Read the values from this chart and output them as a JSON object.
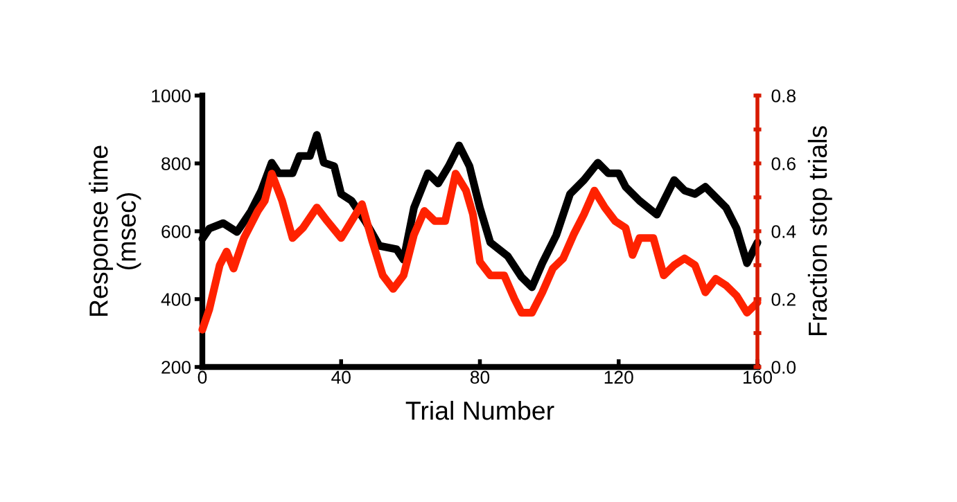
{
  "chart_data": {
    "type": "line",
    "xlabel": "Trial Number",
    "ylabel": "Response time\n(msec)",
    "y2label": "Fraction stop trials",
    "xlim": [
      0,
      160
    ],
    "xticks": [
      0,
      40,
      80,
      120,
      160
    ],
    "ylim": [
      200,
      1000
    ],
    "yticks": [
      200,
      400,
      600,
      800,
      1000
    ],
    "y2lim": [
      0,
      0.8
    ],
    "y2ticks": [
      {
        "value": 0,
        "label": "0.0"
      },
      {
        "value": 0.1,
        "label": null
      },
      {
        "value": 0.2,
        "label": "0.2"
      },
      {
        "value": 0.3,
        "label": null
      },
      {
        "value": 0.4,
        "label": "0.4"
      },
      {
        "value": 0.5,
        "label": null
      },
      {
        "value": 0.6,
        "label": "0.6"
      },
      {
        "value": 0.7,
        "label": null
      },
      {
        "value": 0.8,
        "label": "0.8"
      }
    ],
    "grid": false,
    "legend": false,
    "marker": "none",
    "line_style": "solid",
    "series": [
      {
        "color": "#000000",
        "x": [
          0,
          2,
          6,
          10,
          14,
          17,
          20,
          22,
          26,
          28,
          31,
          33,
          35,
          38,
          40,
          43,
          47,
          51,
          56,
          58,
          61,
          65,
          68,
          71,
          74,
          77,
          80,
          83,
          88,
          92,
          95,
          98,
          102,
          106,
          110,
          114,
          117,
          120,
          122,
          126,
          131,
          136,
          139,
          142,
          145,
          148,
          151,
          154,
          157,
          160
        ],
        "values": [
          578,
          608,
          624,
          598,
          659,
          720,
          802,
          771,
          771,
          822,
          822,
          884,
          802,
          792,
          710,
          690,
          629,
          557,
          547,
          516,
          669,
          771,
          741,
          792,
          853,
          792,
          669,
          567,
          527,
          465,
          435,
          506,
          588,
          710,
          751,
          802,
          771,
          771,
          731,
          690,
          649,
          751,
          720,
          710,
          731,
          700,
          669,
          608,
          506,
          567
        ]
      },
      {
        "color": "#ff2200",
        "axis": "y2",
        "x": [
          0,
          2,
          5,
          7,
          9,
          12,
          16,
          18,
          20,
          23,
          26,
          29,
          33,
          36,
          40,
          43,
          46,
          49,
          52,
          55,
          58,
          61,
          64,
          67,
          70,
          73,
          76,
          78,
          80,
          83,
          87,
          90,
          92,
          95,
          98,
          101,
          104,
          107,
          110,
          113,
          116,
          119,
          122,
          124,
          126,
          130,
          133,
          136,
          139,
          142,
          145,
          148,
          151,
          154,
          157,
          160
        ],
        "values": [
          0.11,
          0.17,
          0.3,
          0.34,
          0.29,
          0.38,
          0.46,
          0.49,
          0.57,
          0.49,
          0.38,
          0.41,
          0.47,
          0.43,
          0.38,
          0.43,
          0.48,
          0.37,
          0.27,
          0.23,
          0.27,
          0.39,
          0.46,
          0.43,
          0.43,
          0.57,
          0.52,
          0.45,
          0.31,
          0.27,
          0.27,
          0.2,
          0.16,
          0.16,
          0.22,
          0.29,
          0.32,
          0.39,
          0.45,
          0.52,
          0.47,
          0.43,
          0.41,
          0.33,
          0.38,
          0.38,
          0.27,
          0.3,
          0.32,
          0.3,
          0.22,
          0.26,
          0.24,
          0.21,
          0.16,
          0.19
        ]
      }
    ]
  }
}
